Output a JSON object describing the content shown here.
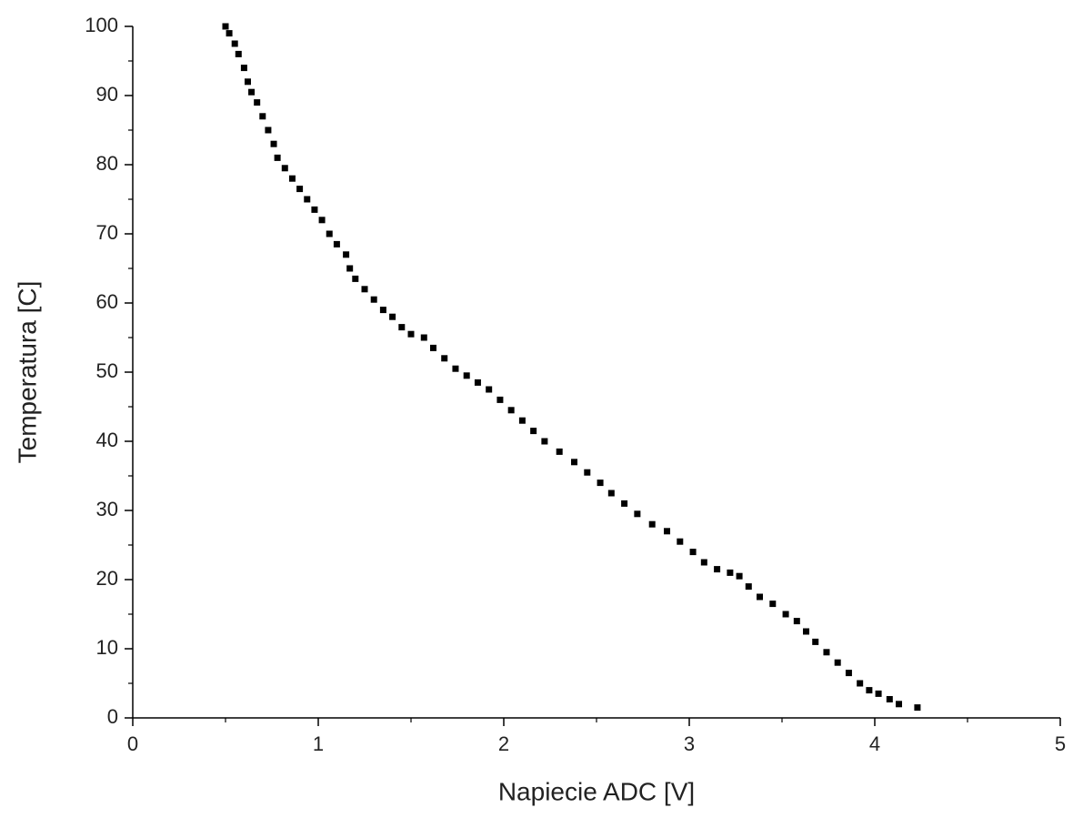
{
  "chart_data": {
    "type": "scatter",
    "xlabel": "Napiecie ADC [V]",
    "ylabel": "Temperatura [C]",
    "color": "#000000",
    "x": [
      0.5,
      0.52,
      0.55,
      0.57,
      0.6,
      0.62,
      0.64,
      0.67,
      0.7,
      0.73,
      0.76,
      0.78,
      0.82,
      0.86,
      0.9,
      0.94,
      0.98,
      1.02,
      1.06,
      1.1,
      1.15,
      1.17,
      1.2,
      1.25,
      1.3,
      1.35,
      1.4,
      1.45,
      1.5,
      1.57,
      1.62,
      1.68,
      1.74,
      1.8,
      1.86,
      1.92,
      1.98,
      2.04,
      2.1,
      2.16,
      2.22,
      2.3,
      2.38,
      2.45,
      2.52,
      2.58,
      2.65,
      2.72,
      2.8,
      2.88,
      2.95,
      3.02,
      3.08,
      3.15,
      3.22,
      3.27,
      3.32,
      3.38,
      3.45,
      3.52,
      3.58,
      3.63,
      3.68,
      3.74,
      3.8,
      3.86,
      3.92,
      3.97,
      4.02,
      4.08,
      4.13,
      4.23
    ],
    "values": [
      100,
      99,
      97.5,
      96,
      94,
      92,
      90.5,
      89,
      87,
      85,
      83,
      81,
      79.5,
      78,
      76.5,
      75,
      73.5,
      72,
      70,
      68.5,
      67,
      65,
      63.5,
      62,
      60.5,
      59,
      58,
      56.5,
      55.5,
      55,
      53.5,
      52,
      50.5,
      49.5,
      48.5,
      47.5,
      46,
      44.5,
      43,
      41.5,
      40,
      38.5,
      37,
      35.5,
      34,
      32.5,
      31,
      29.5,
      28,
      27,
      25.5,
      24,
      22.5,
      21.5,
      21,
      20.5,
      19,
      17.5,
      16.5,
      15,
      14,
      12.5,
      11,
      9.5,
      8,
      6.5,
      5,
      4,
      3.5,
      2.7,
      2,
      1.5
    ],
    "xlim": [
      0,
      5
    ],
    "xticks": [
      0,
      1,
      2,
      3,
      4,
      5
    ],
    "xminorticks": [
      0.5,
      1.5,
      2.5,
      3.5,
      4.5
    ],
    "ylim": [
      0,
      100
    ],
    "yticks": [
      0,
      10,
      20,
      30,
      40,
      50,
      60,
      70,
      80,
      90,
      100
    ],
    "yminorticks": [
      5,
      15,
      25,
      35,
      45,
      55,
      65,
      75,
      85,
      95
    ]
  }
}
